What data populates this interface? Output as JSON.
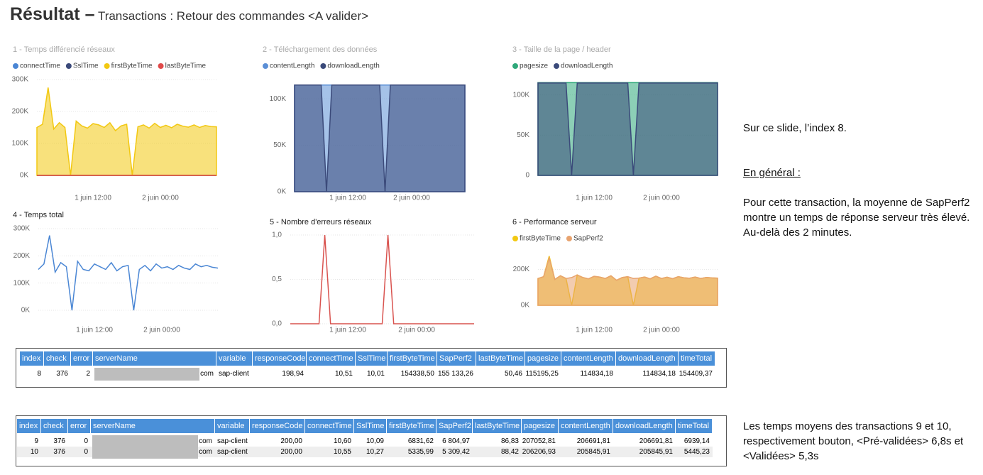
{
  "header": {
    "title": "Résultat –",
    "subtitle": "Transactions : Retour des commandes <A valider>"
  },
  "chart_data": [
    {
      "type": "area",
      "title": "1 - Temps différencié réseaux",
      "x": [
        2,
        3,
        4,
        5,
        6,
        7,
        8,
        9,
        10,
        11,
        12,
        13,
        14,
        15,
        16,
        17,
        18,
        19,
        20,
        21,
        22,
        23,
        24,
        25,
        26,
        27,
        28,
        29,
        30,
        31,
        32,
        33,
        34
      ],
      "series": [
        {
          "name": "connectTime",
          "color": "#4a86d4",
          "values": [
            10.5,
            10.5,
            10.5,
            10.5,
            10.5,
            10.5,
            10.5,
            10.5,
            10.5,
            10.5,
            10.5,
            10.5,
            10.5,
            10.5,
            10.5,
            10.5,
            10.5,
            10.5,
            10.5,
            10.5,
            10.5,
            10.5,
            10.5,
            10.5,
            10.5,
            10.5,
            10.5,
            10.5,
            10.5,
            10.5,
            10.5,
            10.5,
            10.5
          ]
        },
        {
          "name": "SslTime",
          "color": "#3b4a7a",
          "values": [
            10,
            10,
            10,
            10,
            10,
            10,
            10,
            10,
            10,
            10,
            10,
            10,
            10,
            10,
            10,
            10,
            10,
            10,
            10,
            10,
            10,
            10,
            10,
            10,
            10,
            10,
            10,
            10,
            10,
            10,
            10,
            10,
            10
          ]
        },
        {
          "name": "firstByteTime",
          "color": "#f2c811",
          "values": [
            150000,
            160000,
            275000,
            145000,
            165000,
            150000,
            0,
            170000,
            155000,
            148000,
            162000,
            158000,
            150000,
            165000,
            140000,
            155000,
            160000,
            0,
            152000,
            158000,
            148000,
            163000,
            150000,
            157000,
            149000,
            160000,
            154000,
            151000,
            158000,
            150000,
            156000,
            153000,
            152000
          ]
        },
        {
          "name": "lastByteTime",
          "color": "#e04a4a",
          "values": [
            50,
            50,
            50,
            50,
            50,
            50,
            50,
            50,
            50,
            50,
            50,
            50,
            50,
            50,
            50,
            50,
            50,
            50,
            50,
            50,
            50,
            50,
            50,
            50,
            50,
            50,
            50,
            50,
            50,
            50,
            50,
            50,
            50
          ]
        }
      ],
      "xlim": [
        2,
        34
      ],
      "xticks": [
        {
          "value": 12,
          "label": "1 juin 12:00"
        },
        {
          "value": 24,
          "label": "2 juin 00:00"
        }
      ],
      "ylim": [
        0,
        300000
      ],
      "yticks": [
        {
          "value": 0,
          "label": "0K"
        },
        {
          "value": 100000,
          "label": "100K"
        },
        {
          "value": 200000,
          "label": "200K"
        },
        {
          "value": 300000,
          "label": "300K"
        }
      ]
    },
    {
      "type": "area",
      "title": "2 - Téléchargement des données",
      "x": [
        2,
        3,
        4,
        5,
        6,
        7,
        8,
        9,
        10,
        11,
        12,
        13,
        14,
        15,
        16,
        17,
        18,
        19,
        20,
        21,
        22,
        23,
        24,
        25,
        26,
        27,
        28,
        29,
        30,
        31,
        32,
        33,
        34
      ],
      "series": [
        {
          "name": "contentLength",
          "color": "#5b8fd6",
          "values": [
            114834,
            114834,
            114834,
            114834,
            114834,
            114834,
            114834,
            114834,
            114834,
            114834,
            114834,
            114834,
            114834,
            114834,
            114834,
            114834,
            114834,
            114834,
            114834,
            114834,
            114834,
            114834,
            114834,
            114834,
            114834,
            114834,
            114834,
            114834,
            114834,
            114834,
            114834,
            114834,
            114834
          ]
        },
        {
          "name": "downloadLength",
          "color": "#3b4a7a",
          "values": [
            114834,
            114834,
            114834,
            114834,
            114834,
            114834,
            0,
            114834,
            114834,
            114834,
            114834,
            114834,
            114834,
            114834,
            114834,
            114834,
            114834,
            0,
            114834,
            114834,
            114834,
            114834,
            114834,
            114834,
            114834,
            114834,
            114834,
            114834,
            114834,
            114834,
            114834,
            114834,
            114834
          ]
        }
      ],
      "xlim": [
        2,
        34
      ],
      "xticks": [
        {
          "value": 12,
          "label": "1 juin 12:00"
        },
        {
          "value": 24,
          "label": "2 juin 00:00"
        }
      ],
      "ylim": [
        0,
        120000
      ],
      "yticks": [
        {
          "value": 0,
          "label": "0K"
        },
        {
          "value": 50000,
          "label": "50K"
        },
        {
          "value": 100000,
          "label": "100K"
        }
      ]
    },
    {
      "type": "area",
      "title": "3 - Taille de la page / header",
      "x": [
        2,
        3,
        4,
        5,
        6,
        7,
        8,
        9,
        10,
        11,
        12,
        13,
        14,
        15,
        16,
        17,
        18,
        19,
        20,
        21,
        22,
        23,
        24,
        25,
        26,
        27,
        28,
        29,
        30,
        31,
        32,
        33,
        34
      ],
      "series": [
        {
          "name": "pagesize",
          "color": "#2ea87a",
          "values": [
            115195,
            115195,
            115195,
            115195,
            115195,
            115195,
            115195,
            115195,
            115195,
            115195,
            115195,
            115195,
            115195,
            115195,
            115195,
            115195,
            115195,
            115195,
            115195,
            115195,
            115195,
            115195,
            115195,
            115195,
            115195,
            115195,
            115195,
            115195,
            115195,
            115195,
            115195,
            115195,
            115195
          ]
        },
        {
          "name": "downloadLength",
          "color": "#3b4a7a",
          "values": [
            114834,
            114834,
            114834,
            114834,
            114834,
            114834,
            0,
            114834,
            114834,
            114834,
            114834,
            114834,
            114834,
            114834,
            114834,
            114834,
            114834,
            0,
            114834,
            114834,
            114834,
            114834,
            114834,
            114834,
            114834,
            114834,
            114834,
            114834,
            114834,
            114834,
            114834,
            114834,
            114834
          ]
        }
      ],
      "xlim": [
        2,
        34
      ],
      "xticks": [
        {
          "value": 12,
          "label": "1 juin 12:00"
        },
        {
          "value": 24,
          "label": "2 juin 00:00"
        }
      ],
      "ylim": [
        0,
        120000
      ],
      "yticks": [
        0,
        {
          "value": 50000,
          "label": "50K"
        },
        {
          "value": 100000,
          "label": "100K"
        }
      ]
    },
    {
      "type": "line",
      "title": "4 - Temps total",
      "x": [
        2,
        3,
        4,
        5,
        6,
        7,
        8,
        9,
        10,
        11,
        12,
        13,
        14,
        15,
        16,
        17,
        18,
        19,
        20,
        21,
        22,
        23,
        24,
        25,
        26,
        27,
        28,
        29,
        30,
        31,
        32,
        33,
        34
      ],
      "color": "#4a86d4",
      "values": [
        150000,
        170000,
        275000,
        140000,
        175000,
        160000,
        0,
        180000,
        150000,
        145000,
        170000,
        160000,
        150000,
        175000,
        145000,
        160000,
        165000,
        0,
        150000,
        165000,
        145000,
        170000,
        155000,
        160000,
        150000,
        165000,
        155000,
        150000,
        170000,
        160000,
        165000,
        158000,
        155000
      ],
      "xlim": [
        2,
        34
      ],
      "xticks": [
        {
          "value": 12,
          "label": "1 juin 12:00"
        },
        {
          "value": 24,
          "label": "2 juin 00:00"
        }
      ],
      "ylim": [
        0,
        300000
      ],
      "yticks": [
        {
          "value": 0,
          "label": "0K"
        },
        {
          "value": 100000,
          "label": "100K"
        },
        {
          "value": 200000,
          "label": "200K"
        },
        {
          "value": 300000,
          "label": "300K"
        }
      ]
    },
    {
      "type": "line",
      "title": "5 - Nombre d'erreurs réseaux",
      "x": [
        2,
        3,
        4,
        5,
        6,
        7,
        8,
        9,
        10,
        11,
        12,
        13,
        14,
        15,
        16,
        17,
        18,
        19,
        20,
        21,
        22,
        23,
        24,
        25,
        26,
        27,
        28,
        29,
        30,
        31,
        32,
        33,
        34
      ],
      "color": "#d9534f",
      "values": [
        0,
        0,
        0,
        0,
        0,
        0,
        1,
        0,
        0,
        0,
        0,
        0,
        0,
        0,
        0,
        0,
        0,
        1,
        0,
        0,
        0,
        0,
        0,
        0,
        0,
        0,
        0,
        0,
        0,
        0,
        0,
        0,
        0
      ],
      "xlim": [
        2,
        34
      ],
      "xticks": [
        {
          "value": 12,
          "label": "1 juin 12:00"
        },
        {
          "value": 24,
          "label": "2 juin 00:00"
        }
      ],
      "ylim": [
        0,
        1
      ],
      "yticks": [
        {
          "value": 0,
          "label": "0,0"
        },
        {
          "value": 0.5,
          "label": "0,5"
        },
        {
          "value": 1,
          "label": "1,0"
        }
      ]
    },
    {
      "type": "area",
      "title": "6 - Performance serveur",
      "x": [
        2,
        3,
        4,
        5,
        6,
        7,
        8,
        9,
        10,
        11,
        12,
        13,
        14,
        15,
        16,
        17,
        18,
        19,
        20,
        21,
        22,
        23,
        24,
        25,
        26,
        27,
        28,
        29,
        30,
        31,
        32,
        33,
        34
      ],
      "series": [
        {
          "name": "firstByteTime",
          "color": "#f2c811",
          "values": [
            150000,
            160000,
            275000,
            145000,
            165000,
            150000,
            0,
            170000,
            155000,
            148000,
            162000,
            158000,
            150000,
            165000,
            140000,
            155000,
            160000,
            0,
            152000,
            158000,
            148000,
            163000,
            150000,
            157000,
            149000,
            160000,
            154000,
            151000,
            158000,
            150000,
            156000,
            153000,
            152000
          ]
        },
        {
          "name": "SapPerf2",
          "color": "#e8a36f",
          "values": [
            150000,
            160000,
            265000,
            145000,
            165000,
            150000,
            155000,
            170000,
            155000,
            148000,
            162000,
            158000,
            150000,
            165000,
            140000,
            155000,
            160000,
            150000,
            152000,
            158000,
            148000,
            163000,
            150000,
            157000,
            149000,
            160000,
            154000,
            151000,
            158000,
            150000,
            156000,
            153000,
            152000
          ]
        }
      ],
      "xlim": [
        2,
        34
      ],
      "xticks": [
        {
          "value": 12,
          "label": "1 juin 12:00"
        },
        {
          "value": 24,
          "label": "2 juin 00:00"
        }
      ],
      "ylim": [
        0,
        250000
      ],
      "yticks": [
        {
          "value": 0,
          "label": "0K"
        },
        {
          "value": 200000,
          "label": "200K"
        }
      ]
    }
  ],
  "tables": [
    {
      "columns": [
        "index",
        "check",
        "error",
        "serverName",
        "variable",
        "responseCode",
        "connectTime",
        "SslTime",
        "firstByteTime",
        "SapPerf2",
        "lastByteTime",
        "pagesize",
        "contentLength",
        "downloadLength",
        "timeTotal"
      ],
      "rows": [
        [
          "8",
          "376",
          "2",
          "com",
          "sap-client",
          "198,94",
          "10,51",
          "10,01",
          "154338,50",
          "155 133,26",
          "50,46",
          "115195,25",
          "114834,18",
          "114834,18",
          "154409,37"
        ]
      ]
    },
    {
      "columns": [
        "index",
        "check",
        "error",
        "serverName",
        "variable",
        "responseCode",
        "connectTime",
        "SslTime",
        "firstByteTime",
        "SapPerf2",
        "lastByteTime",
        "pagesize",
        "contentLength",
        "downloadLength",
        "timeTotal"
      ],
      "rows": [
        [
          "9",
          "376",
          "0",
          "com",
          "sap-client",
          "200,00",
          "10,60",
          "10,09",
          "6831,62",
          "6 804,97",
          "86,83",
          "207052,81",
          "206691,81",
          "206691,81",
          "6939,14"
        ],
        [
          "10",
          "376",
          "0",
          "com",
          "sap-client",
          "200,00",
          "10,55",
          "10,27",
          "5335,99",
          "5 309,42",
          "88,42",
          "206206,93",
          "205845,91",
          "205845,91",
          "5445,23"
        ]
      ]
    }
  ],
  "notes": {
    "index_note": "Sur ce slide, l’index 8.",
    "general_heading": "En général :",
    "general_text": "Pour cette transaction, la moyenne de SapPerf2 montre un temps de réponse serveur très élevé. Au-delà des 2 minutes.",
    "other_text": "Les temps moyens des transactions 9 et 10, respectivement bouton, <Pré-validées> 6,8s et <Validées> 5,3s"
  }
}
